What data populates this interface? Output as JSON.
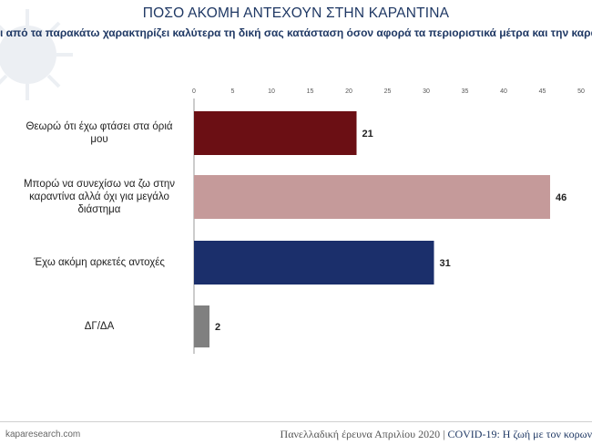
{
  "header": {
    "title": "ΠΟΣΟ ΑΚΟΜΗ ΑΝΤΕΧΟΥΝ ΣΤΗΝ ΚΑΡΑΝΤΙΝΑ",
    "subtitle": "ι από τα παρακάτω χαρακτηρίζει καλύτερα τη δική σας κατάσταση όσον αφορά τα περιοριστικά μέτρα και την καραντίνα;"
  },
  "chart_data": {
    "type": "bar",
    "orientation": "horizontal",
    "title": "ΠΟΣΟ ΑΚΟΜΗ ΑΝΤΕΧΟΥΝ ΣΤΗΝ ΚΑΡΑΝΤΙΝΑ",
    "categories": [
      "Θεωρώ ότι έχω φτάσει στα όριά μου",
      "Μπορώ να συνεχίσω να ζω στην καραντίνα αλλά όχι για μεγάλο διάστημα",
      "Έχω ακόμη αρκετές αντοχές",
      "ΔΓ/ΔΑ"
    ],
    "values": [
      21,
      46,
      31,
      2
    ],
    "value_labels": [
      "21",
      "46",
      "31",
      "2"
    ],
    "colors": [
      "#6b0f14",
      "#c59a9a",
      "#1b2f6b",
      "#808080"
    ],
    "xlim": [
      0,
      50
    ],
    "xticks": [
      "0",
      "5",
      "10",
      "15",
      "20",
      "25",
      "30",
      "35",
      "40",
      "45",
      "50"
    ],
    "axis_position": "top"
  },
  "footer": {
    "source": "kaparesearch.com",
    "survey": "Πανελλαδική έρευνα Απριλίου 2020 | ",
    "brand": "COVID-19: Η ζωή με τον κορων"
  }
}
